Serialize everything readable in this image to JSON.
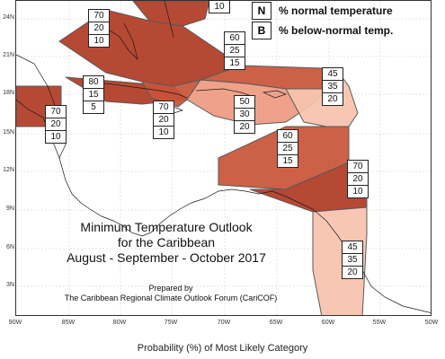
{
  "title_lines": [
    "Minimum Temperature Outlook",
    "for the Caribbean",
    "August - September - October 2017"
  ],
  "prepared_lines": [
    "Prepared by",
    "The Caribbean Regional Climate Outlook Forum (CariCOF)"
  ],
  "caption": "Probability (%) of Most Likely Category",
  "legend": [
    {
      "key": "N",
      "text": "% normal temperature"
    },
    {
      "key": "B",
      "text": "% below-normal temp."
    }
  ],
  "lat_labels": [
    "24N",
    "21N",
    "18N",
    "15N",
    "12N",
    "9N",
    "6N",
    "3N"
  ],
  "lon_labels": [
    "90W",
    "85W",
    "80W",
    "75W",
    "70W",
    "65W",
    "60W",
    "55W",
    "50W"
  ],
  "colors": {
    "dark": "#b03a22",
    "medium": "#c95438",
    "light": "#ee9a80",
    "lightest": "#f6c2ae",
    "boundary": "#5a5a5a"
  },
  "probability_boxes": [
    {
      "id": "top-cut",
      "values": [
        "10"
      ]
    },
    {
      "id": "bahamas",
      "values": [
        "70",
        "20",
        "10"
      ]
    },
    {
      "id": "turks",
      "values": [
        "60",
        "25",
        "15"
      ]
    },
    {
      "id": "caribbean-east",
      "values": [
        "45",
        "35",
        "20"
      ]
    },
    {
      "id": "cuba-west",
      "values": [
        "80",
        "15",
        "5"
      ]
    },
    {
      "id": "mexico",
      "values": [
        "70",
        "20",
        "10"
      ]
    },
    {
      "id": "jamaica",
      "values": [
        "70",
        "20",
        "10"
      ]
    },
    {
      "id": "hispaniola",
      "values": [
        "50",
        "30",
        "20"
      ]
    },
    {
      "id": "central-carib",
      "values": [
        "60",
        "25",
        "15"
      ]
    },
    {
      "id": "venezuela",
      "values": [
        "70",
        "20",
        "10"
      ]
    },
    {
      "id": "guianas",
      "values": [
        "45",
        "35",
        "20"
      ]
    }
  ]
}
